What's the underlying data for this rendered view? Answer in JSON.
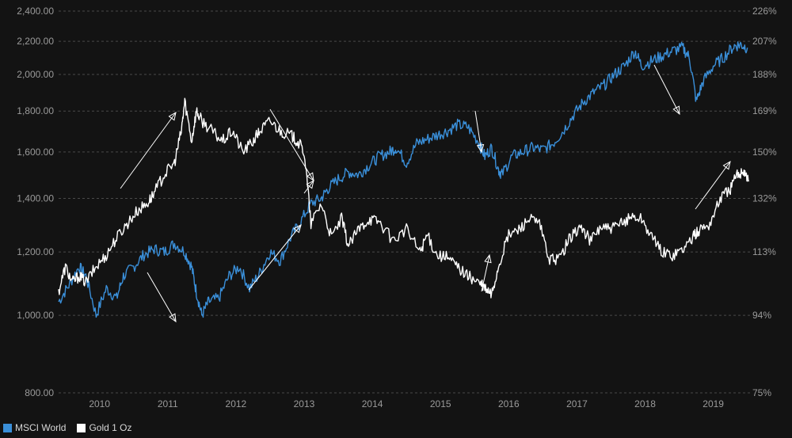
{
  "chart_data": {
    "type": "line",
    "title": "",
    "xlabel": "",
    "ylabel": "",
    "x_tick_labels": [
      "2010",
      "2011",
      "2012",
      "2013",
      "2014",
      "2015",
      "2016",
      "2017",
      "2018",
      "2019"
    ],
    "xlim": [
      2009.6,
      2019.75
    ],
    "y_left_tick_labels": [
      "2,400.00",
      "2,200.00",
      "2,000.00",
      "1,800.00",
      "1,600.00",
      "1,400.00",
      "1,200.00",
      "1,000.00",
      "800.00"
    ],
    "y_left_ticks": [
      2400,
      2200,
      2000,
      1800,
      1600,
      1400,
      1200,
      1000,
      800
    ],
    "y_right_tick_labels": [
      "226%",
      "207%",
      "188%",
      "169%",
      "150%",
      "132%",
      "113%",
      "94%",
      "75%"
    ],
    "y_right_ticks": [
      226,
      207,
      188,
      169,
      150,
      132,
      113,
      94,
      75
    ],
    "ylim": [
      800,
      2400
    ],
    "y_scale": "log",
    "grid": true,
    "legend_position": "bottom-left",
    "series": [
      {
        "name": "MSCI World",
        "color": "#3a8fd9",
        "x": [
          2009.6,
          2009.75,
          2009.9,
          2010.0,
          2010.15,
          2010.3,
          2010.45,
          2010.55,
          2010.7,
          2010.85,
          2011.0,
          2011.15,
          2011.3,
          2011.45,
          2011.55,
          2011.62,
          2011.7,
          2011.8,
          2011.95,
          2012.1,
          2012.25,
          2012.4,
          2012.55,
          2012.7,
          2012.85,
          2013.0,
          2013.15,
          2013.3,
          2013.45,
          2013.55,
          2013.7,
          2013.85,
          2014.0,
          2014.15,
          2014.3,
          2014.45,
          2014.55,
          2014.7,
          2014.85,
          2015.0,
          2015.15,
          2015.3,
          2015.45,
          2015.6,
          2015.75,
          2015.85,
          2015.95,
          2016.05,
          2016.1,
          2016.25,
          2016.4,
          2016.55,
          2016.7,
          2016.85,
          2017.0,
          2017.15,
          2017.3,
          2017.45,
          2017.6,
          2017.75,
          2017.9,
          2018.05,
          2018.15,
          2018.3,
          2018.45,
          2018.6,
          2018.75,
          2018.85,
          2018.95,
          2019.05,
          2019.2,
          2019.35,
          2019.5,
          2019.6,
          2019.7
        ],
        "y": [
          1040,
          1090,
          1150,
          1120,
          1000,
          1080,
          1050,
          1120,
          1150,
          1190,
          1210,
          1200,
          1230,
          1200,
          1150,
          1070,
          1000,
          1040,
          1050,
          1120,
          1150,
          1080,
          1130,
          1200,
          1170,
          1250,
          1310,
          1380,
          1400,
          1440,
          1480,
          1510,
          1500,
          1540,
          1580,
          1600,
          1620,
          1550,
          1640,
          1660,
          1680,
          1700,
          1730,
          1720,
          1650,
          1580,
          1620,
          1520,
          1500,
          1580,
          1600,
          1620,
          1610,
          1640,
          1700,
          1780,
          1850,
          1900,
          1940,
          2000,
          2050,
          2140,
          2050,
          2080,
          2110,
          2140,
          2160,
          2100,
          1850,
          1960,
          2050,
          2100,
          2170,
          2180,
          2160
        ]
      },
      {
        "name": "Gold 1 Oz",
        "color": "#ffffff",
        "x": [
          2009.6,
          2009.7,
          2009.8,
          2009.9,
          2010.0,
          2010.15,
          2010.3,
          2010.45,
          2010.6,
          2010.75,
          2010.9,
          2011.0,
          2011.15,
          2011.3,
          2011.4,
          2011.45,
          2011.55,
          2011.62,
          2011.7,
          2011.85,
          2012.0,
          2012.15,
          2012.3,
          2012.45,
          2012.55,
          2012.7,
          2012.85,
          2013.0,
          2013.1,
          2013.2,
          2013.3,
          2013.45,
          2013.6,
          2013.75,
          2013.85,
          2014.0,
          2014.15,
          2014.3,
          2014.5,
          2014.7,
          2014.9,
          2015.0,
          2015.15,
          2015.3,
          2015.45,
          2015.6,
          2015.75,
          2015.85,
          2015.95,
          2016.05,
          2016.2,
          2016.35,
          2016.5,
          2016.65,
          2016.8,
          2016.95,
          2017.1,
          2017.25,
          2017.4,
          2017.55,
          2017.7,
          2017.85,
          2018.0,
          2018.15,
          2018.3,
          2018.45,
          2018.6,
          2018.75,
          2018.9,
          2019.0,
          2019.15,
          2019.3,
          2019.45,
          2019.55,
          2019.65,
          2019.72
        ],
        "y": [
          1070,
          1150,
          1100,
          1120,
          1100,
          1150,
          1190,
          1250,
          1300,
          1350,
          1380,
          1420,
          1500,
          1550,
          1700,
          1850,
          1650,
          1800,
          1750,
          1700,
          1650,
          1700,
          1600,
          1650,
          1700,
          1750,
          1700,
          1680,
          1650,
          1600,
          1300,
          1380,
          1250,
          1320,
          1220,
          1280,
          1320,
          1310,
          1240,
          1280,
          1200,
          1260,
          1190,
          1180,
          1150,
          1120,
          1100,
          1080,
          1060,
          1150,
          1260,
          1280,
          1320,
          1300,
          1170,
          1180,
          1250,
          1290,
          1240,
          1290,
          1280,
          1300,
          1330,
          1320,
          1250,
          1200,
          1190,
          1210,
          1250,
          1280,
          1300,
          1400,
          1440,
          1500,
          1520,
          1470
        ]
      }
    ],
    "annotations": [
      {
        "type": "arrow",
        "direction": "up"
      },
      {
        "type": "arrow",
        "direction": "down"
      },
      {
        "type": "arrow",
        "direction": "down"
      },
      {
        "type": "arrow",
        "direction": "up"
      },
      {
        "type": "arrow",
        "direction": "down"
      },
      {
        "type": "arrow",
        "direction": "up"
      },
      {
        "type": "arrow",
        "direction": "down"
      },
      {
        "type": "arrow",
        "direction": "up"
      },
      {
        "type": "arrow",
        "direction": "down"
      }
    ]
  },
  "legend": {
    "items": [
      {
        "label": "MSCI World",
        "color": "#3a8fd9"
      },
      {
        "label": "Gold 1 Oz",
        "color": "#ffffff"
      }
    ]
  }
}
